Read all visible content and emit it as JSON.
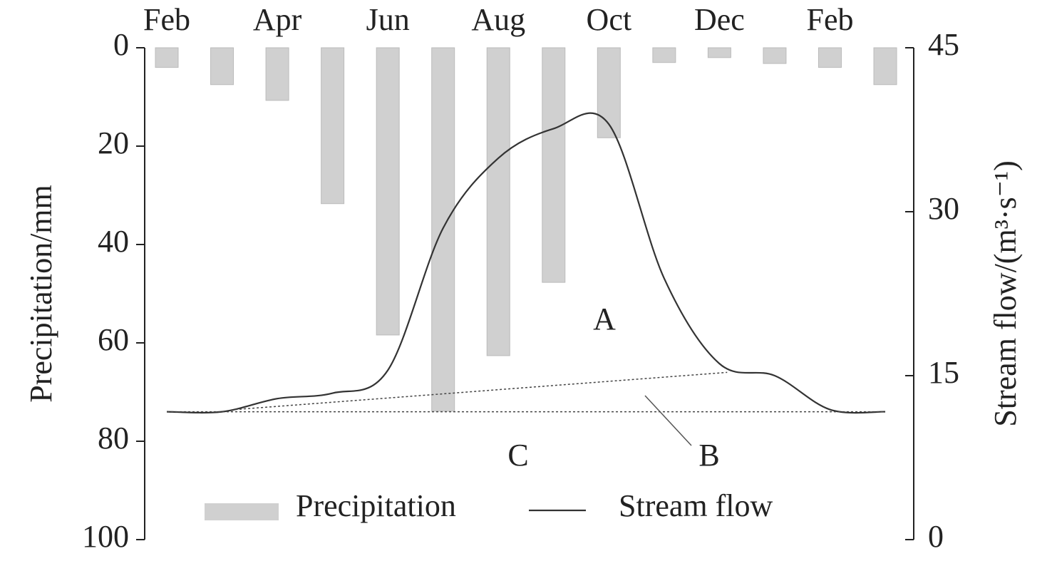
{
  "chart_data": {
    "type": "bar_line",
    "categories": [
      "Feb",
      null,
      "Apr",
      null,
      "Jun",
      null,
      "Aug",
      null,
      "Oct",
      null,
      "Dec",
      null,
      "Feb",
      null
    ],
    "series": [
      {
        "name": "Precipitation",
        "type": "bar",
        "axis": "y",
        "color": "#d0d0d0",
        "values": [
          4,
          7.5,
          10.7,
          31.7,
          58.4,
          73.9,
          62.6,
          47.7,
          18.3,
          3,
          2,
          3.2,
          4,
          7.5
        ]
      },
      {
        "name": "Stream flow",
        "type": "line",
        "axis": "y2",
        "color": "#333333",
        "values": [
          11.7,
          11.7,
          12.9,
          13.4,
          15.5,
          28.5,
          34.9,
          37.6,
          38.0,
          23.9,
          16.1,
          15.0,
          11.9,
          11.7
        ]
      }
    ],
    "baseflow_lines": [
      {
        "x": [
          1.24,
          10.14
        ],
        "values": [
          11.9,
          15.3
        ]
      },
      {
        "x": [
          0,
          13
        ],
        "values": [
          11.7,
          11.7
        ]
      }
    ],
    "ylabel": "Precipitation/mm",
    "y2label": "Stream flow/(m³·s⁻¹)",
    "ylim": [
      100,
      0
    ],
    "yticks": [
      0,
      20,
      40,
      60,
      80,
      100
    ],
    "y2lim": [
      0,
      45
    ],
    "y2ticks": [
      0,
      15,
      30,
      45
    ],
    "annotations": [
      "A",
      "B",
      "C"
    ],
    "legend": "bottom"
  }
}
